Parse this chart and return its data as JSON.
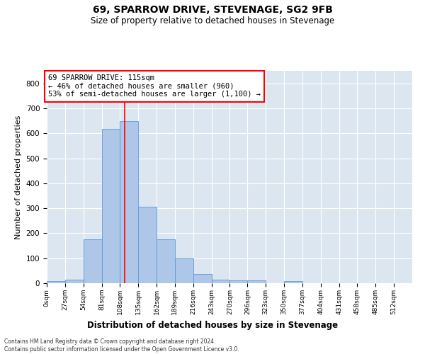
{
  "title1": "69, SPARROW DRIVE, STEVENAGE, SG2 9FB",
  "title2": "Size of property relative to detached houses in Stevenage",
  "xlabel": "Distribution of detached houses by size in Stevenage",
  "ylabel": "Number of detached properties",
  "annotation_line1": "69 SPARROW DRIVE: 115sqm",
  "annotation_line2": "← 46% of detached houses are smaller (960)",
  "annotation_line3": "53% of semi-detached houses are larger (1,100) →",
  "bin_edges": [
    0,
    27,
    54,
    81,
    108,
    135,
    162,
    189,
    216,
    243,
    270,
    296,
    323,
    350,
    377,
    404,
    431,
    458,
    485,
    512,
    539
  ],
  "bar_heights": [
    8,
    13,
    175,
    618,
    650,
    305,
    175,
    98,
    38,
    15,
    12,
    10,
    0,
    8,
    0,
    0,
    0,
    0,
    0,
    0
  ],
  "bar_color": "#aec6e8",
  "bar_edge_color": "#5b9bd5",
  "marker_x": 115,
  "marker_color": "red",
  "ylim": [
    0,
    850
  ],
  "yticks": [
    0,
    100,
    200,
    300,
    400,
    500,
    600,
    700,
    800
  ],
  "xlim": [
    0,
    539
  ],
  "background_color": "#dce6f1",
  "grid_color": "#ffffff",
  "footer_line1": "Contains HM Land Registry data © Crown copyright and database right 2024.",
  "footer_line2": "Contains public sector information licensed under the Open Government Licence v3.0."
}
